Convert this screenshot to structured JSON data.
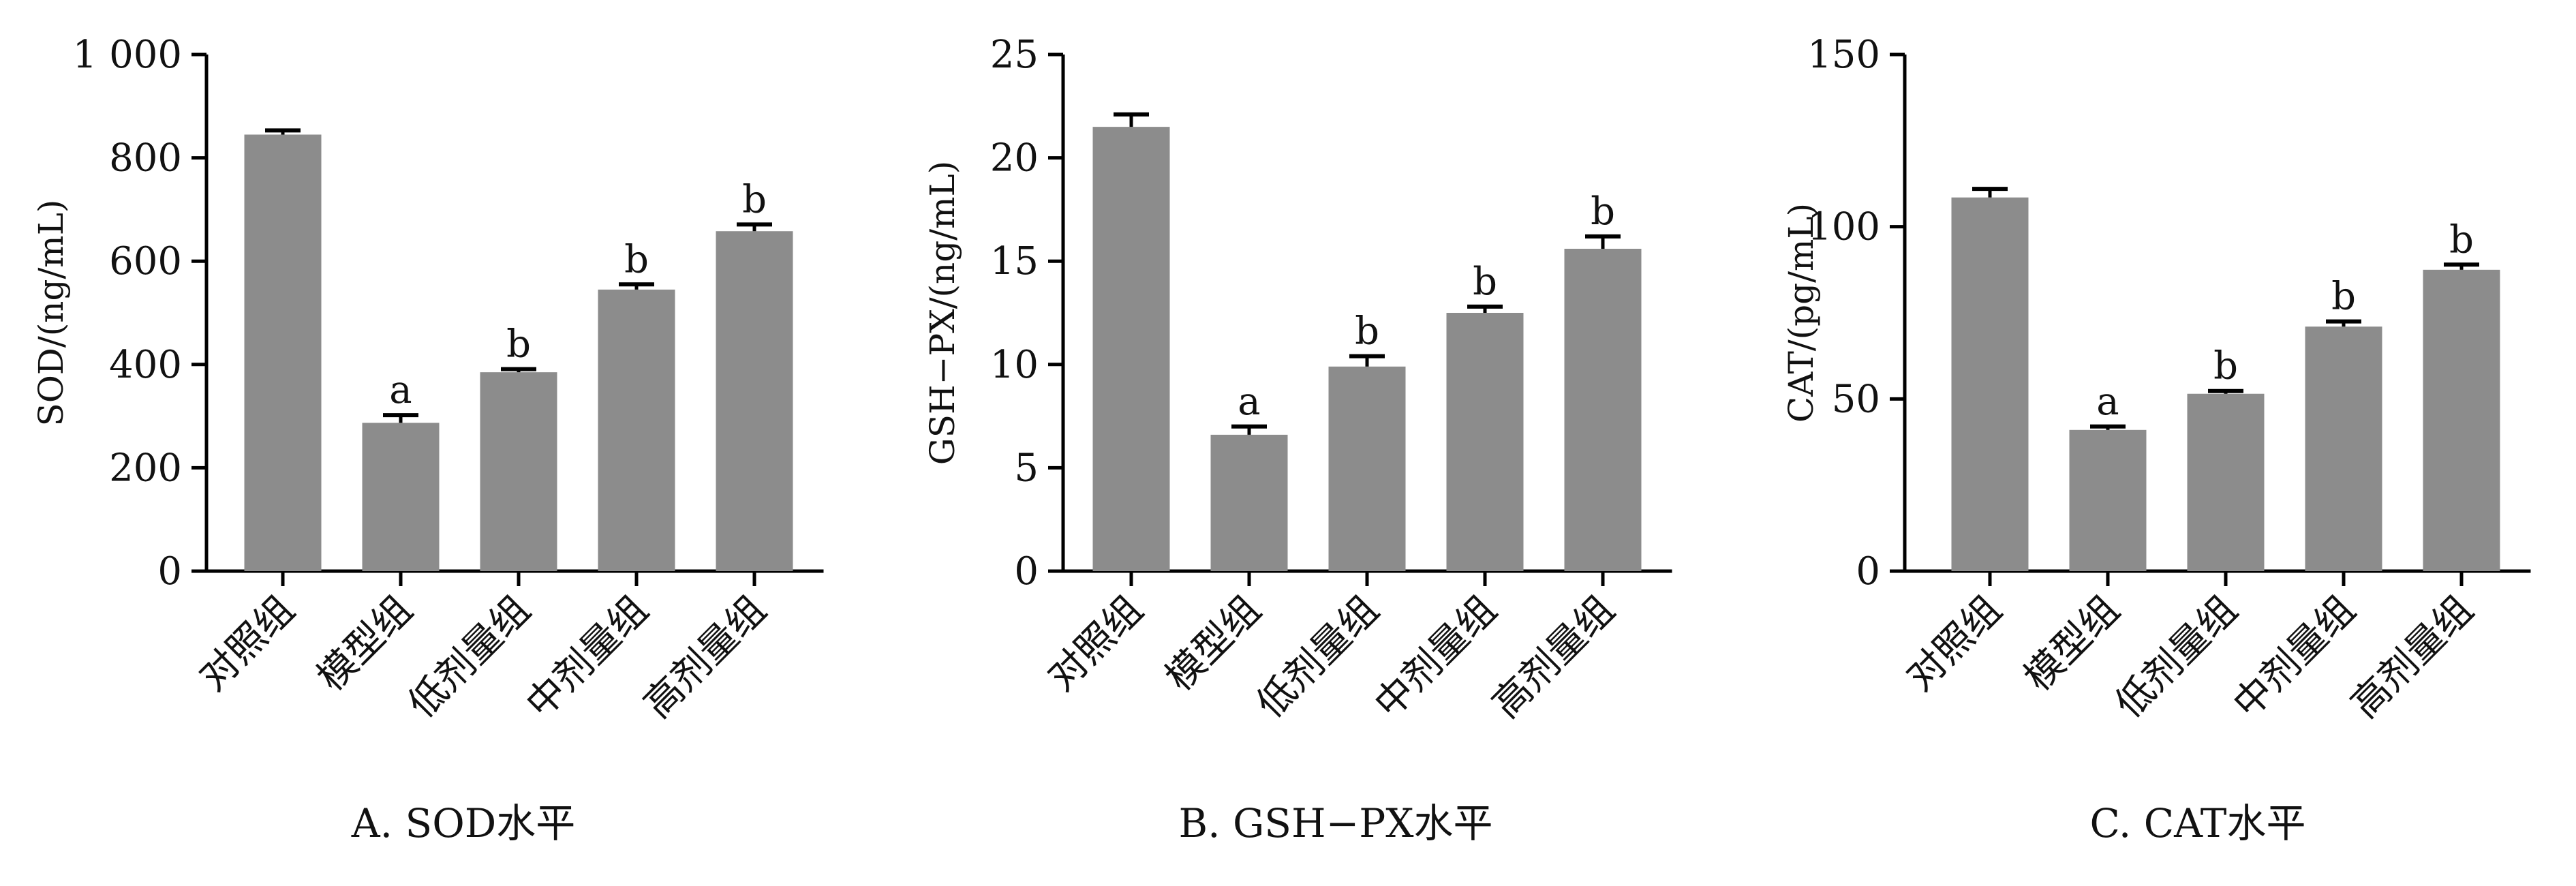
{
  "chart_data": [
    {
      "type": "bar",
      "caption": "A. SOD水平",
      "ylabel": "SOD/(ng/mL)",
      "categories": [
        "对照组",
        "模型组",
        "低剂量组",
        "中剂量组",
        "高剂量组"
      ],
      "values": [
        845,
        287,
        385,
        545,
        658
      ],
      "errors": [
        8,
        15,
        6,
        10,
        13
      ],
      "significance": [
        "",
        "a",
        "b",
        "b",
        "b"
      ],
      "ylim": [
        0,
        1000
      ],
      "yticks": [
        0,
        200,
        400,
        600,
        800,
        1000
      ],
      "ytick_labels": [
        "0",
        "200",
        "400",
        "600",
        "800",
        "1 000"
      ],
      "bar_color": "#8c8c8c"
    },
    {
      "type": "bar",
      "caption": "B. GSH−PX水平",
      "ylabel": "GSH−PX/(ng/mL)",
      "categories": [
        "对照组",
        "模型组",
        "低剂量组",
        "中剂量组",
        "高剂量组"
      ],
      "values": [
        21.5,
        6.6,
        9.9,
        12.5,
        15.6
      ],
      "errors": [
        0.6,
        0.4,
        0.5,
        0.3,
        0.6
      ],
      "significance": [
        "",
        "a",
        "b",
        "b",
        "b"
      ],
      "ylim": [
        0,
        25
      ],
      "yticks": [
        0,
        5,
        10,
        15,
        20,
        25
      ],
      "ytick_labels": [
        "0",
        "5",
        "10",
        "15",
        "20",
        "25"
      ],
      "bar_color": "#8c8c8c"
    },
    {
      "type": "bar",
      "caption": "C. CAT水平",
      "ylabel": "CAT/(pg/mL)",
      "categories": [
        "对照组",
        "模型组",
        "低剂量组",
        "中剂量组",
        "高剂量组"
      ],
      "values": [
        108.5,
        41,
        51.5,
        71,
        87.5
      ],
      "errors": [
        2.5,
        1,
        0.8,
        1.5,
        1.5
      ],
      "significance": [
        "",
        "a",
        "b",
        "b",
        "b"
      ],
      "ylim": [
        0,
        150
      ],
      "yticks": [
        0,
        50,
        100,
        150
      ],
      "ytick_labels": [
        "0",
        "50",
        "100",
        "150"
      ],
      "bar_color": "#8c8c8c"
    }
  ]
}
